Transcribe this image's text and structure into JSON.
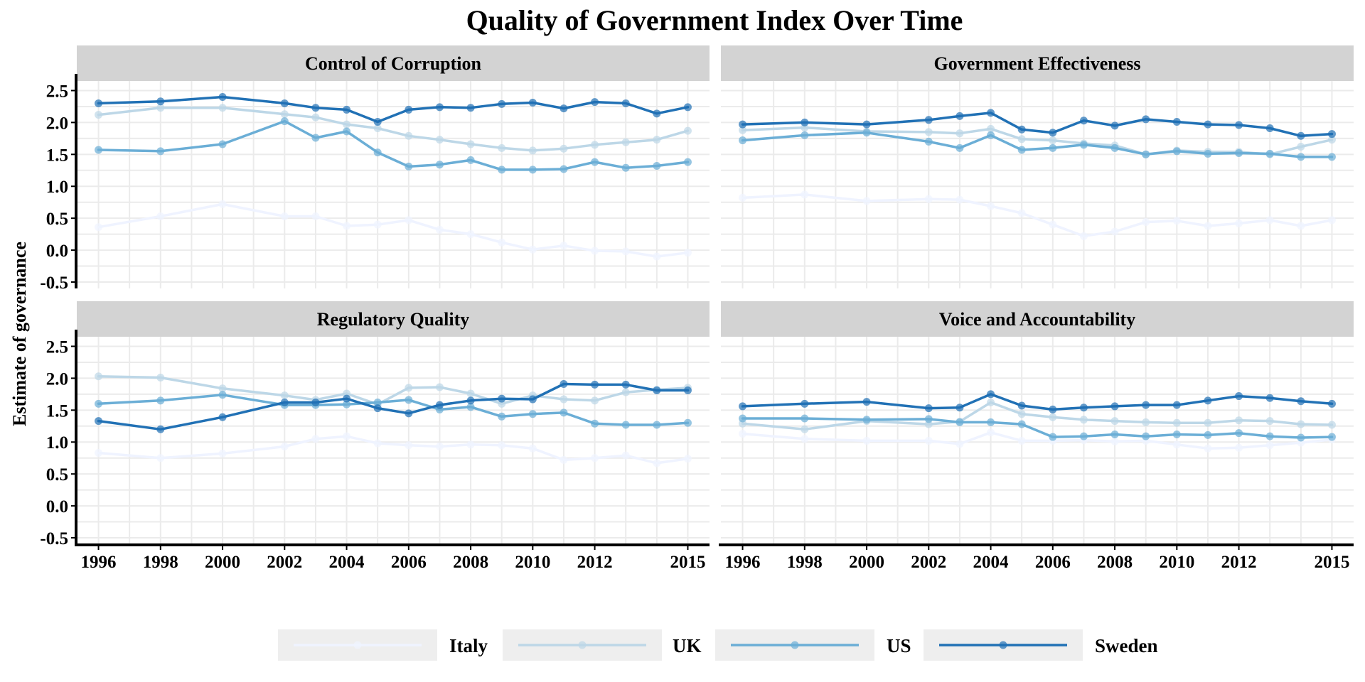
{
  "title": "Quality of Government Index Over Time",
  "colors": {
    "Italy": "#eff3ff",
    "UK": "#bdd7e7",
    "US": "#6baed6",
    "Sweden": "#2171b5",
    "strip_bg": "#d3d3d3",
    "grid": "#ebebeb",
    "legend_key_bg": "#eeeeee"
  },
  "chart_data": [
    {
      "type": "line",
      "panel": "Control of Corruption",
      "x": [
        1996,
        1998,
        2000,
        2002,
        2003,
        2004,
        2005,
        2006,
        2007,
        2008,
        2009,
        2010,
        2011,
        2012,
        2013,
        2014,
        2015
      ],
      "series": [
        {
          "name": "Italy",
          "values": [
            0.36,
            0.53,
            0.72,
            0.53,
            0.53,
            0.38,
            0.4,
            0.47,
            0.32,
            0.25,
            0.12,
            0.01,
            0.07,
            -0.01,
            -0.02,
            -0.1,
            -0.04
          ]
        },
        {
          "name": "UK",
          "values": [
            2.12,
            2.23,
            2.23,
            2.13,
            2.08,
            1.97,
            1.91,
            1.79,
            1.73,
            1.66,
            1.6,
            1.56,
            1.59,
            1.65,
            1.69,
            1.73,
            1.87
          ]
        },
        {
          "name": "US",
          "values": [
            1.57,
            1.55,
            1.66,
            2.02,
            1.76,
            1.86,
            1.53,
            1.31,
            1.34,
            1.41,
            1.26,
            1.26,
            1.27,
            1.38,
            1.29,
            1.32,
            1.38
          ]
        },
        {
          "name": "Sweden",
          "values": [
            2.3,
            2.33,
            2.4,
            2.3,
            2.23,
            2.2,
            2.01,
            2.2,
            2.24,
            2.23,
            2.29,
            2.31,
            2.22,
            2.32,
            2.3,
            2.14,
            2.24
          ]
        }
      ],
      "xlabel": "",
      "ylabel": "Estimate of governance",
      "ylim": [
        -0.6,
        2.6
      ]
    },
    {
      "type": "line",
      "panel": "Government Effectiveness",
      "x": [
        1996,
        1998,
        2000,
        2002,
        2003,
        2004,
        2005,
        2006,
        2007,
        2008,
        2009,
        2010,
        2011,
        2012,
        2013,
        2014,
        2015
      ],
      "series": [
        {
          "name": "Italy",
          "values": [
            0.82,
            0.87,
            0.77,
            0.8,
            0.79,
            0.69,
            0.58,
            0.4,
            0.22,
            0.29,
            0.44,
            0.46,
            0.38,
            0.42,
            0.47,
            0.38,
            0.47
          ]
        },
        {
          "name": "UK",
          "values": [
            1.88,
            1.92,
            1.86,
            1.85,
            1.83,
            1.9,
            1.74,
            1.72,
            1.67,
            1.64,
            1.5,
            1.56,
            1.54,
            1.54,
            1.5,
            1.62,
            1.73
          ]
        },
        {
          "name": "US",
          "values": [
            1.72,
            1.8,
            1.84,
            1.7,
            1.6,
            1.8,
            1.57,
            1.6,
            1.65,
            1.6,
            1.5,
            1.55,
            1.51,
            1.52,
            1.51,
            1.46,
            1.46
          ]
        },
        {
          "name": "Sweden",
          "values": [
            1.97,
            2.0,
            1.97,
            2.04,
            2.1,
            2.15,
            1.89,
            1.84,
            2.03,
            1.95,
            2.05,
            2.01,
            1.97,
            1.96,
            1.91,
            1.79,
            1.82
          ]
        }
      ],
      "xlabel": "",
      "ylabel": "",
      "ylim": [
        -0.6,
        2.6
      ]
    },
    {
      "type": "line",
      "panel": "Regulatory Quality",
      "x": [
        1996,
        1998,
        2000,
        2002,
        2003,
        2004,
        2005,
        2006,
        2007,
        2008,
        2009,
        2010,
        2011,
        2012,
        2013,
        2014,
        2015
      ],
      "series": [
        {
          "name": "Italy",
          "values": [
            0.83,
            0.75,
            0.82,
            0.93,
            1.05,
            1.09,
            0.98,
            0.95,
            0.93,
            0.96,
            0.95,
            0.9,
            0.72,
            0.75,
            0.79,
            0.67,
            0.74
          ]
        },
        {
          "name": "UK",
          "values": [
            2.03,
            2.01,
            1.84,
            1.73,
            1.66,
            1.76,
            1.59,
            1.85,
            1.86,
            1.76,
            1.6,
            1.73,
            1.67,
            1.65,
            1.78,
            1.82,
            1.85
          ]
        },
        {
          "name": "US",
          "values": [
            1.6,
            1.65,
            1.74,
            1.58,
            1.58,
            1.59,
            1.62,
            1.66,
            1.51,
            1.55,
            1.4,
            1.44,
            1.46,
            1.29,
            1.27,
            1.27,
            1.3
          ]
        },
        {
          "name": "Sweden",
          "values": [
            1.33,
            1.2,
            1.39,
            1.62,
            1.62,
            1.68,
            1.53,
            1.45,
            1.58,
            1.65,
            1.68,
            1.67,
            1.91,
            1.9,
            1.9,
            1.81,
            1.81
          ]
        }
      ],
      "xlabel": "",
      "ylabel": "Estimate of governance",
      "ylim": [
        -0.6,
        2.6
      ]
    },
    {
      "type": "line",
      "panel": "Voice and Accountability",
      "x": [
        1996,
        1998,
        2000,
        2002,
        2003,
        2004,
        2005,
        2006,
        2007,
        2008,
        2009,
        2010,
        2011,
        2012,
        2013,
        2014,
        2015
      ],
      "series": [
        {
          "name": "Italy",
          "values": [
            1.13,
            1.05,
            1.02,
            1.02,
            0.97,
            1.15,
            1.02,
            1.02,
            1.03,
            1.01,
            1.02,
            0.96,
            0.9,
            0.91,
            0.95,
            0.99,
            1.04
          ]
        },
        {
          "name": "UK",
          "values": [
            1.29,
            1.2,
            1.33,
            1.28,
            1.32,
            1.62,
            1.44,
            1.39,
            1.35,
            1.33,
            1.31,
            1.3,
            1.3,
            1.34,
            1.33,
            1.28,
            1.27
          ]
        },
        {
          "name": "US",
          "values": [
            1.37,
            1.37,
            1.35,
            1.36,
            1.31,
            1.31,
            1.28,
            1.08,
            1.09,
            1.12,
            1.09,
            1.12,
            1.11,
            1.14,
            1.09,
            1.07,
            1.08
          ]
        },
        {
          "name": "Sweden",
          "values": [
            1.56,
            1.6,
            1.63,
            1.53,
            1.54,
            1.75,
            1.57,
            1.51,
            1.54,
            1.56,
            1.58,
            1.58,
            1.65,
            1.72,
            1.69,
            1.64,
            1.6
          ]
        }
      ],
      "xlabel": "",
      "ylabel": "",
      "ylim": [
        -0.6,
        2.6
      ]
    }
  ],
  "axes": {
    "ylabel": "Estimate of governance",
    "yticks": [
      "2.5",
      "2.0",
      "1.5",
      "1.0",
      "0.5",
      "0.0",
      "-0.5"
    ],
    "xticks": [
      "1996",
      "1998",
      "2000",
      "2002",
      "2004",
      "2006",
      "2008",
      "2010",
      "2012",
      "2015"
    ]
  },
  "legend": {
    "position": "bottom",
    "items": [
      "Italy",
      "UK",
      "US",
      "Sweden"
    ]
  }
}
